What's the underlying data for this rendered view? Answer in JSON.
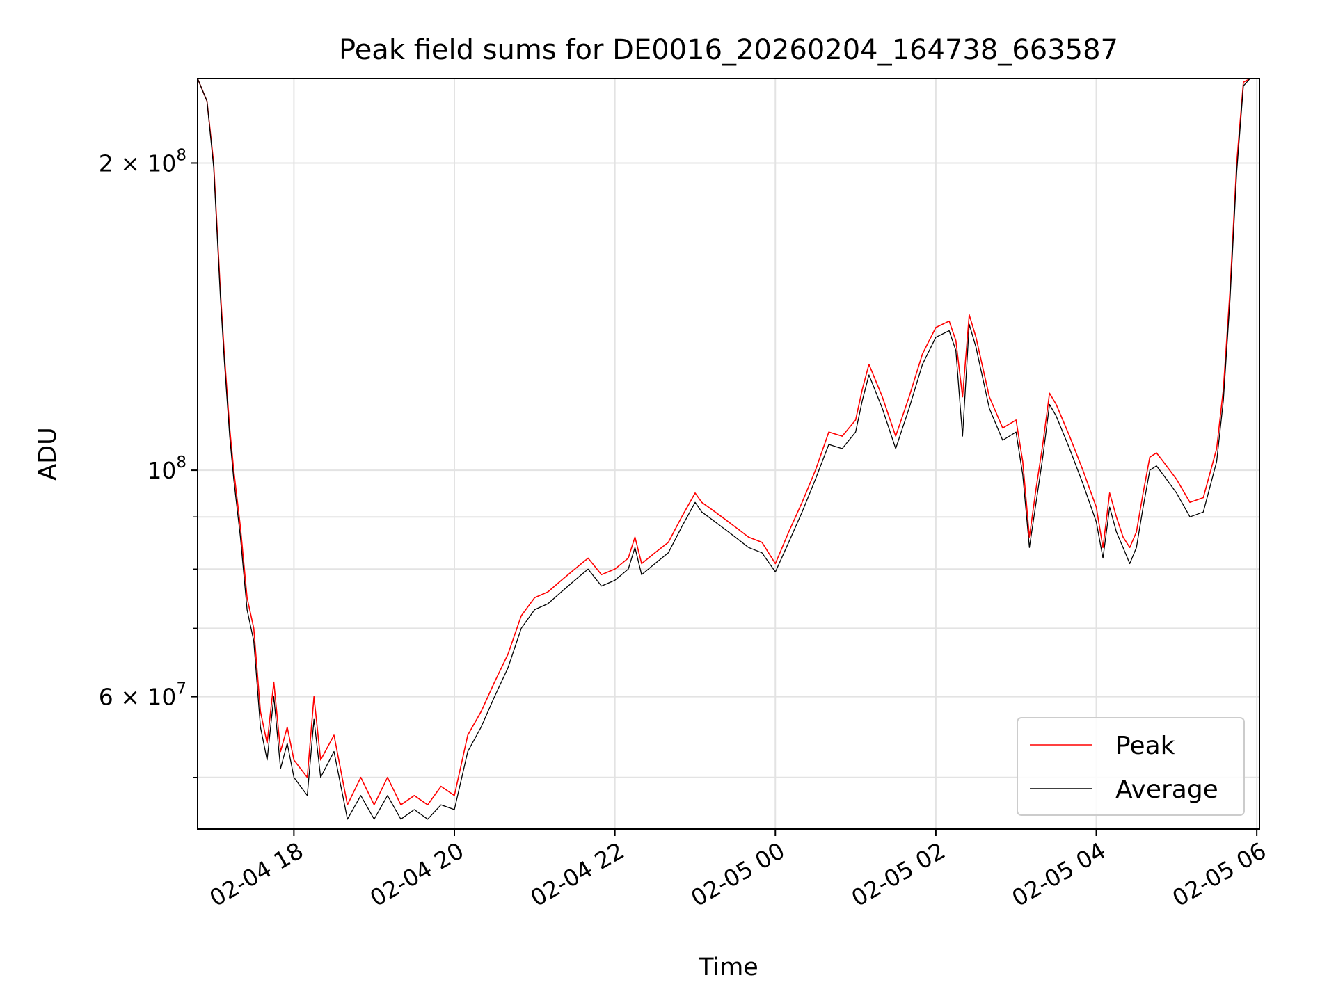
{
  "chart_data": {
    "type": "line",
    "title": "Peak field sums for DE0016_20260204_164738_663587",
    "xlabel": "Time",
    "ylabel": "ADU",
    "yscale": "log",
    "xlim": [
      "2026-02-04 16:48",
      "2026-02-05 06:02"
    ],
    "ylim": [
      44500000,
      242000000
    ],
    "grid": true,
    "legend_position": "lower-right",
    "x_ticks": [
      {
        "value": "2026-02-04 18:00",
        "label": "02-04 18"
      },
      {
        "value": "2026-02-04 20:00",
        "label": "02-04 20"
      },
      {
        "value": "2026-02-04 22:00",
        "label": "02-04 22"
      },
      {
        "value": "2026-02-05 00:00",
        "label": "02-05 00"
      },
      {
        "value": "2026-02-05 02:00",
        "label": "02-05 02"
      },
      {
        "value": "2026-02-05 04:00",
        "label": "02-05 04"
      },
      {
        "value": "2026-02-05 06:00",
        "label": "02-05 06"
      }
    ],
    "y_ticks_major": [
      {
        "value": 200000000,
        "mantissa": "2",
        "exponent": "8"
      },
      {
        "value": 100000000,
        "mantissa": "",
        "exponent": "8"
      },
      {
        "value": 60000000,
        "mantissa": "6",
        "exponent": "7"
      }
    ],
    "y_ticks_minor": [
      50000000,
      70000000,
      80000000,
      90000000
    ],
    "series": [
      {
        "name": "Peak",
        "color": "#ff0000",
        "x": [
          "2026-02-04 16:48",
          "2026-02-04 16:55",
          "2026-02-04 17:00",
          "2026-02-04 17:05",
          "2026-02-04 17:08",
          "2026-02-04 17:12",
          "2026-02-04 17:15",
          "2026-02-04 17:20",
          "2026-02-04 17:25",
          "2026-02-04 17:30",
          "2026-02-04 17:35",
          "2026-02-04 17:40",
          "2026-02-04 17:45",
          "2026-02-04 17:50",
          "2026-02-04 17:55",
          "2026-02-04 18:00",
          "2026-02-04 18:10",
          "2026-02-04 18:15",
          "2026-02-04 18:20",
          "2026-02-04 18:30",
          "2026-02-04 18:40",
          "2026-02-04 18:50",
          "2026-02-04 19:00",
          "2026-02-04 19:10",
          "2026-02-04 19:20",
          "2026-02-04 19:30",
          "2026-02-04 19:40",
          "2026-02-04 19:50",
          "2026-02-04 20:00",
          "2026-02-04 20:10",
          "2026-02-04 20:20",
          "2026-02-04 20:30",
          "2026-02-04 20:40",
          "2026-02-04 20:50",
          "2026-02-04 21:00",
          "2026-02-04 21:10",
          "2026-02-04 21:20",
          "2026-02-04 21:30",
          "2026-02-04 21:40",
          "2026-02-04 21:50",
          "2026-02-04 22:00",
          "2026-02-04 22:10",
          "2026-02-04 22:15",
          "2026-02-04 22:20",
          "2026-02-04 22:30",
          "2026-02-04 22:40",
          "2026-02-04 22:50",
          "2026-02-04 23:00",
          "2026-02-04 23:05",
          "2026-02-04 23:10",
          "2026-02-04 23:20",
          "2026-02-04 23:30",
          "2026-02-04 23:40",
          "2026-02-04 23:50",
          "2026-02-05 00:00",
          "2026-02-05 00:10",
          "2026-02-05 00:20",
          "2026-02-05 00:30",
          "2026-02-05 00:40",
          "2026-02-05 00:50",
          "2026-02-05 01:00",
          "2026-02-05 01:05",
          "2026-02-05 01:10",
          "2026-02-05 01:20",
          "2026-02-05 01:30",
          "2026-02-05 01:40",
          "2026-02-05 01:50",
          "2026-02-05 02:00",
          "2026-02-05 02:10",
          "2026-02-05 02:15",
          "2026-02-05 02:20",
          "2026-02-05 02:25",
          "2026-02-05 02:30",
          "2026-02-05 02:40",
          "2026-02-05 02:50",
          "2026-02-05 03:00",
          "2026-02-05 03:05",
          "2026-02-05 03:10",
          "2026-02-05 03:15",
          "2026-02-05 03:20",
          "2026-02-05 03:25",
          "2026-02-05 03:30",
          "2026-02-05 03:40",
          "2026-02-05 03:50",
          "2026-02-05 04:00",
          "2026-02-05 04:05",
          "2026-02-05 04:10",
          "2026-02-05 04:15",
          "2026-02-05 04:20",
          "2026-02-05 04:25",
          "2026-02-05 04:30",
          "2026-02-05 04:35",
          "2026-02-05 04:40",
          "2026-02-05 04:45",
          "2026-02-05 04:50",
          "2026-02-05 05:00",
          "2026-02-05 05:10",
          "2026-02-05 05:20",
          "2026-02-05 05:30",
          "2026-02-05 05:35",
          "2026-02-05 05:40",
          "2026-02-05 05:45",
          "2026-02-05 05:50",
          "2026-02-05 05:55",
          "2026-02-05 06:00"
        ],
        "y": [
          242000000,
          230000000,
          200000000,
          150000000,
          130000000,
          110000000,
          100000000,
          88000000,
          75000000,
          70000000,
          58000000,
          54000000,
          62000000,
          53000000,
          56000000,
          52000000,
          50000000,
          60000000,
          52000000,
          55000000,
          47000000,
          50000000,
          47000000,
          50000000,
          47000000,
          48000000,
          47000000,
          49000000,
          48000000,
          55000000,
          58000000,
          62000000,
          66000000,
          72000000,
          75000000,
          76000000,
          78000000,
          80000000,
          82000000,
          79000000,
          80000000,
          82000000,
          86000000,
          81000000,
          83000000,
          85000000,
          90000000,
          95000000,
          93000000,
          92000000,
          90000000,
          88000000,
          86000000,
          85000000,
          81000000,
          87000000,
          93000000,
          100000000,
          109000000,
          108000000,
          112000000,
          120000000,
          127000000,
          118000000,
          108000000,
          118000000,
          130000000,
          138000000,
          140000000,
          134000000,
          118000000,
          142000000,
          135000000,
          118000000,
          110000000,
          112000000,
          102000000,
          86000000,
          96000000,
          106000000,
          119000000,
          116000000,
          108000000,
          100000000,
          92000000,
          84000000,
          95000000,
          90000000,
          86000000,
          84000000,
          87000000,
          95000000,
          103000000,
          104000000,
          102000000,
          98000000,
          93000000,
          94000000,
          105000000,
          120000000,
          150000000,
          200000000,
          240000000,
          242000000,
          242000000
        ]
      },
      {
        "name": "Average",
        "color": "#000000",
        "x": [
          "2026-02-04 16:48",
          "2026-02-04 16:55",
          "2026-02-04 17:00",
          "2026-02-04 17:05",
          "2026-02-04 17:08",
          "2026-02-04 17:12",
          "2026-02-04 17:15",
          "2026-02-04 17:20",
          "2026-02-04 17:25",
          "2026-02-04 17:30",
          "2026-02-04 17:35",
          "2026-02-04 17:40",
          "2026-02-04 17:45",
          "2026-02-04 17:50",
          "2026-02-04 17:55",
          "2026-02-04 18:00",
          "2026-02-04 18:10",
          "2026-02-04 18:15",
          "2026-02-04 18:20",
          "2026-02-04 18:30",
          "2026-02-04 18:40",
          "2026-02-04 18:50",
          "2026-02-04 19:00",
          "2026-02-04 19:10",
          "2026-02-04 19:20",
          "2026-02-04 19:30",
          "2026-02-04 19:40",
          "2026-02-04 19:50",
          "2026-02-04 20:00",
          "2026-02-04 20:10",
          "2026-02-04 20:20",
          "2026-02-04 20:30",
          "2026-02-04 20:40",
          "2026-02-04 20:50",
          "2026-02-04 21:00",
          "2026-02-04 21:10",
          "2026-02-04 21:20",
          "2026-02-04 21:30",
          "2026-02-04 21:40",
          "2026-02-04 21:50",
          "2026-02-04 22:00",
          "2026-02-04 22:10",
          "2026-02-04 22:15",
          "2026-02-04 22:20",
          "2026-02-04 22:30",
          "2026-02-04 22:40",
          "2026-02-04 22:50",
          "2026-02-04 23:00",
          "2026-02-04 23:05",
          "2026-02-04 23:10",
          "2026-02-04 23:20",
          "2026-02-04 23:30",
          "2026-02-04 23:40",
          "2026-02-04 23:50",
          "2026-02-05 00:00",
          "2026-02-05 00:10",
          "2026-02-05 00:20",
          "2026-02-05 00:30",
          "2026-02-05 00:40",
          "2026-02-05 00:50",
          "2026-02-05 01:00",
          "2026-02-05 01:05",
          "2026-02-05 01:10",
          "2026-02-05 01:20",
          "2026-02-05 01:30",
          "2026-02-05 01:40",
          "2026-02-05 01:50",
          "2026-02-05 02:00",
          "2026-02-05 02:10",
          "2026-02-05 02:15",
          "2026-02-05 02:20",
          "2026-02-05 02:25",
          "2026-02-05 02:30",
          "2026-02-05 02:40",
          "2026-02-05 02:50",
          "2026-02-05 03:00",
          "2026-02-05 03:05",
          "2026-02-05 03:10",
          "2026-02-05 03:15",
          "2026-02-05 03:20",
          "2026-02-05 03:25",
          "2026-02-05 03:30",
          "2026-02-05 03:40",
          "2026-02-05 03:50",
          "2026-02-05 04:00",
          "2026-02-05 04:05",
          "2026-02-05 04:10",
          "2026-02-05 04:15",
          "2026-02-05 04:20",
          "2026-02-05 04:25",
          "2026-02-05 04:30",
          "2026-02-05 04:35",
          "2026-02-05 04:40",
          "2026-02-05 04:45",
          "2026-02-05 04:50",
          "2026-02-05 05:00",
          "2026-02-05 05:10",
          "2026-02-05 05:20",
          "2026-02-05 05:30",
          "2026-02-05 05:35",
          "2026-02-05 05:40",
          "2026-02-05 05:45",
          "2026-02-05 05:50",
          "2026-02-05 05:55",
          "2026-02-05 06:00"
        ],
        "y": [
          242000000,
          230000000,
          198000000,
          148000000,
          128000000,
          108000000,
          98000000,
          86000000,
          73000000,
          68000000,
          56000000,
          52000000,
          60000000,
          51000000,
          54000000,
          50000000,
          48000000,
          57000000,
          50000000,
          53000000,
          45500000,
          48000000,
          45500000,
          48000000,
          45500000,
          46500000,
          45500000,
          47000000,
          46500000,
          53000000,
          56000000,
          60000000,
          64000000,
          70000000,
          73000000,
          74000000,
          76000000,
          78000000,
          80000000,
          77000000,
          78000000,
          80000000,
          84000000,
          79000000,
          81000000,
          83000000,
          88000000,
          93000000,
          91000000,
          90000000,
          88000000,
          86000000,
          84000000,
          83000000,
          79500000,
          85000000,
          91000000,
          98000000,
          106000000,
          105000000,
          109000000,
          117000000,
          124000000,
          115000000,
          105000000,
          115000000,
          127000000,
          135000000,
          137000000,
          131000000,
          108000000,
          139000000,
          132000000,
          115000000,
          107000000,
          109000000,
          99000000,
          84000000,
          93000000,
          103000000,
          116000000,
          113000000,
          105000000,
          97000000,
          89000000,
          82000000,
          92000000,
          87000000,
          84000000,
          81000000,
          84000000,
          92000000,
          100000000,
          101000000,
          99000000,
          95000000,
          90000000,
          91000000,
          102000000,
          117000000,
          147000000,
          196000000,
          238000000,
          242000000,
          242000000
        ]
      }
    ]
  }
}
